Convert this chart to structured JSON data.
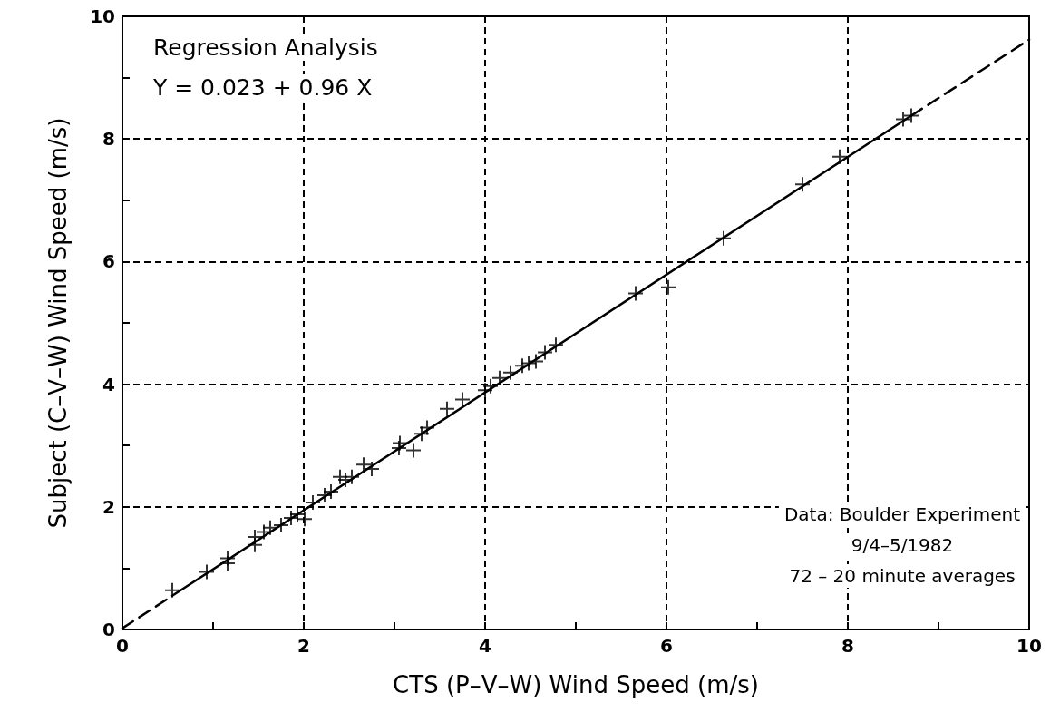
{
  "chart_data": {
    "type": "scatter",
    "xlabel": "CTS (P–V–W) Wind Speed (m/s)",
    "ylabel": "Subject (C–V–W) Wind Speed (m/s)",
    "annotations": [
      "Regression Analysis",
      "Y = 0.023 + 0.96 X",
      "Data: Boulder Experiment",
      "9/4–5/1982",
      "72 – 20 minute averages"
    ],
    "xlim": [
      0,
      10
    ],
    "ylim": [
      0,
      10
    ],
    "xticks": [
      0,
      {
        "value": 1,
        "label": null
      },
      2,
      {
        "value": 3,
        "label": null
      },
      4,
      {
        "value": 5,
        "label": null
      },
      6,
      {
        "value": 7,
        "label": null
      },
      8,
      {
        "value": 9,
        "label": null
      },
      10
    ],
    "yticks": [
      0,
      {
        "value": 1,
        "label": null
      },
      2,
      {
        "value": 3,
        "label": null
      },
      4,
      {
        "value": 5,
        "label": null
      },
      6,
      {
        "value": 7,
        "label": null
      },
      8,
      {
        "value": 9,
        "label": null
      },
      10
    ],
    "grid": true,
    "marker": "cross",
    "series": [
      {
        "color": "#000000",
        "x": [
          0.55,
          0.93,
          1.16,
          1.16,
          1.46,
          1.46,
          1.56,
          1.63,
          1.75,
          1.86,
          1.93,
          2.01,
          2.1,
          2.23,
          2.3,
          2.4,
          2.46,
          2.53,
          2.66,
          2.75,
          3.05,
          3.06,
          3.21,
          3.3,
          3.36,
          3.58,
          3.75,
          4.0,
          4.06,
          4.16,
          4.28,
          4.41,
          4.48,
          4.56,
          4.66,
          4.78,
          5.66,
          6.02,
          6.63,
          7.5,
          7.91,
          8.61,
          8.7
        ],
        "values": [
          0.64,
          0.94,
          1.16,
          1.08,
          1.51,
          1.38,
          1.59,
          1.66,
          1.7,
          1.82,
          1.88,
          1.8,
          2.07,
          2.19,
          2.25,
          2.49,
          2.44,
          2.49,
          2.69,
          2.62,
          2.96,
          3.04,
          2.92,
          3.19,
          3.29,
          3.6,
          3.75,
          3.9,
          3.97,
          4.1,
          4.19,
          4.3,
          4.34,
          4.37,
          4.52,
          4.64,
          5.48,
          5.58,
          6.38,
          7.26,
          7.71,
          8.32,
          8.38
        ]
      },
      {
        "type": "line",
        "color": "#000000",
        "line_style": "solid",
        "marker": "none",
        "x": [
          0.55,
          8.7
        ],
        "values": [
          0.55,
          8.38
        ]
      },
      {
        "type": "line",
        "color": "#000000",
        "line_style": "dashed",
        "marker": "none",
        "x": [
          0,
          0.55,
          5,
          8.7,
          10
        ],
        "values": [
          0.02,
          0.55,
          null,
          8.38,
          9.62
        ]
      }
    ]
  }
}
